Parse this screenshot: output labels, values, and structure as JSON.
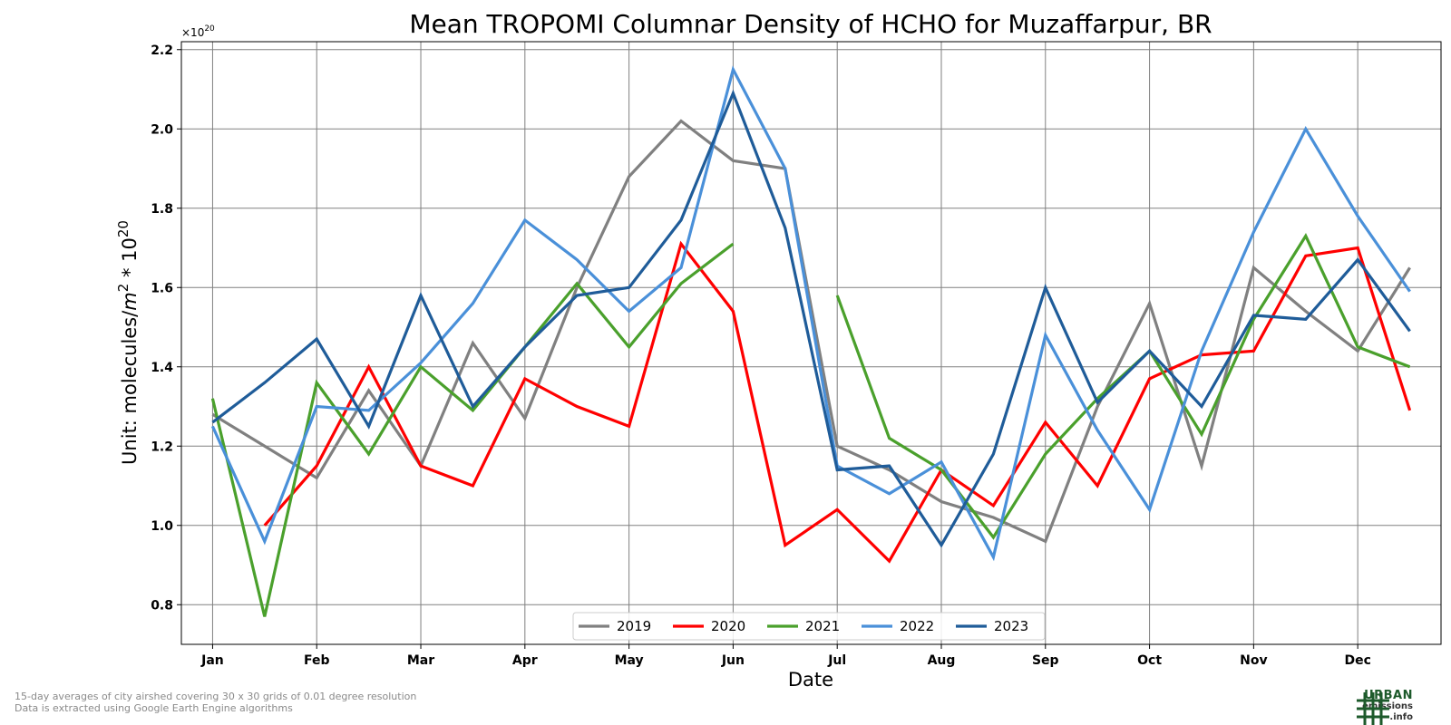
{
  "chart_data": {
    "type": "line",
    "title": "Mean TROPOMI Columnar Density of HCHO for Muzaffarpur, BR",
    "xlabel": "Date",
    "ylabel_prefix": "Unit: molecules/",
    "ylabel_m": "m",
    "ylabel_m_exp": "2",
    "ylabel_mid": " * 10",
    "ylabel_exp": "20",
    "offset_base": "×10",
    "offset_exp": "20",
    "ylim": [
      0.7,
      2.22
    ],
    "yticks": [
      0.8,
      1.0,
      1.2,
      1.4,
      1.6,
      1.8,
      2.0,
      2.2
    ],
    "ytick_labels": [
      "0.8",
      "1.0",
      "1.2",
      "1.4",
      "1.6",
      "1.8",
      "2.0",
      "2.2"
    ],
    "x_tick_labels": [
      "Jan",
      "Feb",
      "Mar",
      "Apr",
      "May",
      "Jun",
      "Jul",
      "Aug",
      "Sep",
      "Oct",
      "Nov",
      "Dec"
    ],
    "xlim_periods": [
      -0.6,
      23.6
    ],
    "grid": true,
    "legend_placement": "bottom-center",
    "x_periods": [
      0,
      1,
      2,
      3,
      4,
      5,
      6,
      7,
      8,
      9,
      10,
      11,
      12,
      13,
      14,
      15,
      16,
      17,
      18,
      19,
      20,
      21,
      22,
      23
    ],
    "series": [
      {
        "name": "2019",
        "color": "#808080",
        "values": [
          1.28,
          1.2,
          1.12,
          1.34,
          1.15,
          1.46,
          1.27,
          1.6,
          1.88,
          2.02,
          1.92,
          1.9,
          1.2,
          1.14,
          1.06,
          1.02,
          0.96,
          1.3,
          1.56,
          1.15,
          1.65,
          1.54,
          1.44,
          1.65
        ]
      },
      {
        "name": "2020",
        "color": "#ff0000",
        "values": [
          null,
          1.0,
          1.15,
          1.4,
          1.15,
          1.1,
          1.37,
          1.3,
          1.25,
          1.71,
          1.54,
          0.95,
          1.04,
          0.91,
          1.14,
          1.05,
          1.26,
          1.1,
          1.37,
          1.43,
          1.44,
          1.68,
          1.7,
          1.29
        ]
      },
      {
        "name": "2021",
        "color": "#4aa02c",
        "values": [
          1.32,
          0.77,
          1.36,
          1.18,
          1.4,
          1.29,
          1.45,
          1.61,
          1.45,
          1.61,
          1.71,
          null,
          1.58,
          1.22,
          1.14,
          0.97,
          1.18,
          1.32,
          1.44,
          1.23,
          1.52,
          1.73,
          1.45,
          1.4
        ]
      },
      {
        "name": "2022",
        "color": "#4a90d9",
        "values": [
          1.25,
          0.96,
          1.3,
          1.29,
          1.41,
          1.56,
          1.77,
          1.67,
          1.54,
          1.65,
          2.15,
          1.9,
          1.15,
          1.08,
          1.16,
          0.92,
          1.48,
          1.24,
          1.04,
          1.44,
          1.74,
          2.0,
          1.78,
          1.59
        ]
      },
      {
        "name": "2023",
        "color": "#1f5c99",
        "values": [
          1.26,
          1.36,
          1.47,
          1.25,
          1.58,
          1.3,
          1.45,
          1.58,
          1.6,
          1.77,
          2.09,
          1.75,
          1.14,
          1.15,
          0.95,
          1.18,
          1.6,
          1.31,
          1.44,
          1.3,
          1.53,
          1.52,
          1.67,
          1.49
        ]
      }
    ]
  },
  "footnote": {
    "line1": "15-day averages of city airshed covering 30 x 30 grids of 0.01 degree resolution",
    "line2": "Data is extracted using Google Earth Engine algorithms"
  },
  "logo": {
    "line1": "URBAN",
    "line2": "emissions",
    "line3": ".info",
    "color": "#1d5a2b",
    "icon": "grid-hash-icon"
  }
}
